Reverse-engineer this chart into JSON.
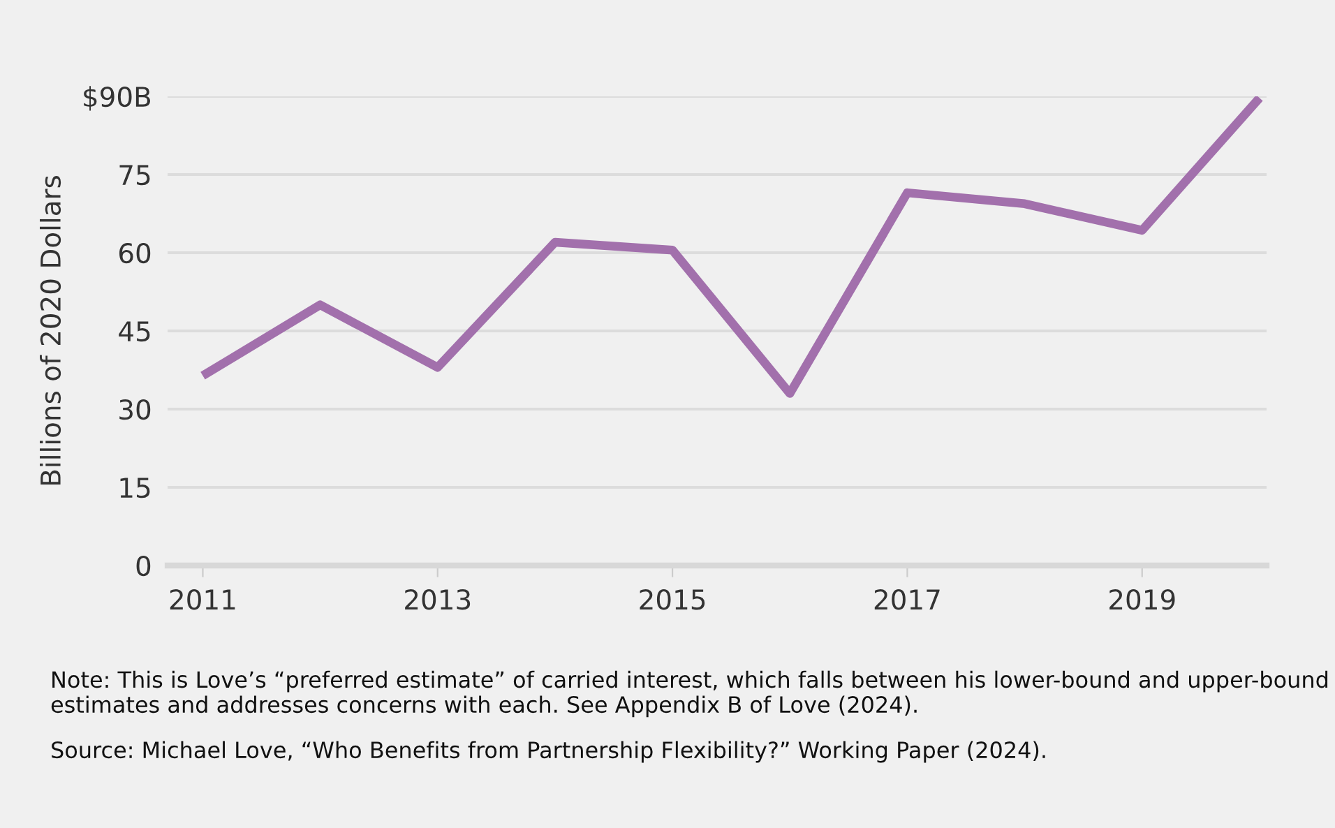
{
  "chart_data": {
    "type": "line",
    "ylabel": "Billions of 2020 Dollars",
    "x": [
      2011,
      2012,
      2013,
      2014,
      2015,
      2016,
      2017,
      2018,
      2019,
      2020
    ],
    "series": [
      {
        "color": "#a270ac",
        "values": [
          36.4,
          50,
          38,
          62,
          60.5,
          33,
          71.5,
          69.4,
          64.3,
          89.7
        ]
      }
    ],
    "xlim": [
      2010.7,
      2020.06
    ],
    "xticks": [
      2011,
      2013,
      2015,
      2017,
      2019
    ],
    "ylim": [
      0,
      90
    ],
    "yticks": [
      0,
      15,
      30,
      45,
      60,
      75,
      {
        "value": 90,
        "label": "$90B"
      }
    ],
    "grid": "y",
    "legend": false,
    "marker": "none",
    "line_style": "solid",
    "annotations": [
      "Note: This is Love’s “preferred estimate” of carried interest, which falls between his lower-bound and upper-bound estimates and addresses concerns with each. See Appendix B of Love (2024).",
      "Source: Michael Love, “Who Benefits from Partnership Flexibility?” Working Paper (2024)."
    ]
  }
}
